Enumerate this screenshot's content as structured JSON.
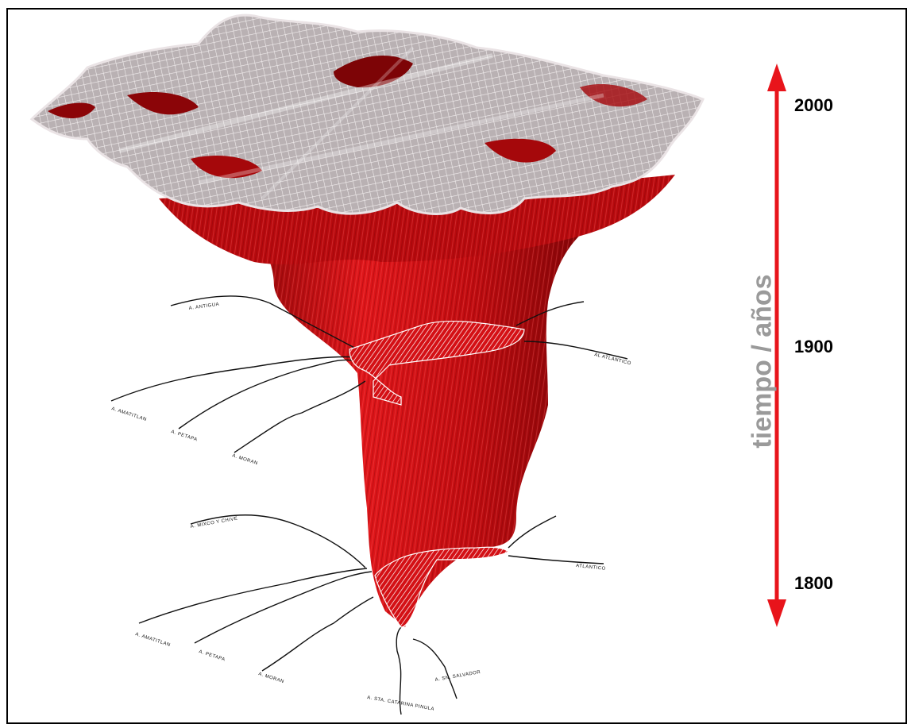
{
  "time_axis": {
    "title": "tiempo / años",
    "color": "#e8141b",
    "ticks": [
      "2000",
      "1900",
      "1800"
    ]
  },
  "road_labels_1900": [
    "A. ANTIGUA",
    "A. AMATITLAN",
    "A. PETAPA",
    "A. MORAN",
    "AL ATLANTICO"
  ],
  "road_labels_1800": [
    "A. MIXCO Y CHIVE",
    "A. AMATITLAN",
    "A. PETAPA",
    "A. MORAN",
    "A. STA. CATARINA PINULA",
    "A. SN. SALVADOR",
    "ATLANTICO"
  ],
  "colors": {
    "growth_volume": "#d40f12",
    "city_footprint": "#e9e3e4",
    "roads": "#111111"
  }
}
